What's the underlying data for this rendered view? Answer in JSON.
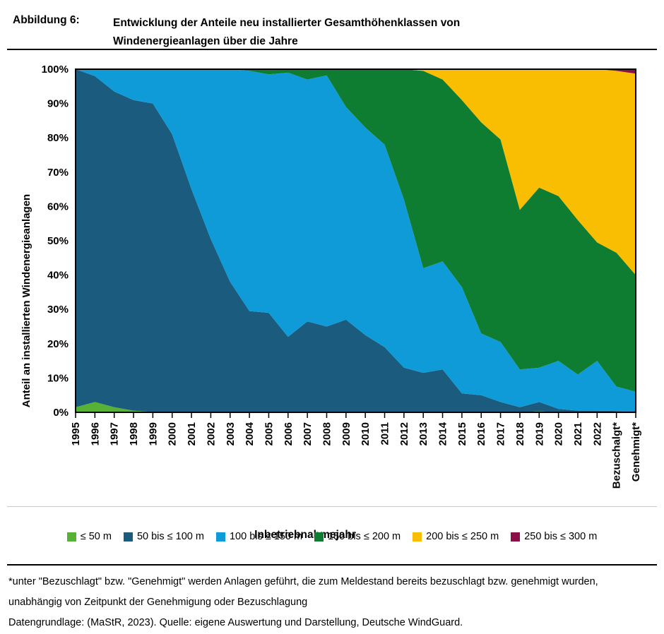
{
  "header": {
    "figure_label": "Abbildung 6:",
    "title": "Entwicklung der Anteile neu installierter Gesamthöhenklassen von Windenergieanlagen über die Jahre"
  },
  "chart_data": {
    "type": "area",
    "stacked": true,
    "unit": "percent",
    "title": "",
    "xlabel": "Inbetriebnahmejahr",
    "ylabel": "Anteil an installierten Windenergieanlagen",
    "ylim": [
      0,
      100
    ],
    "grid": false,
    "legend_position": "bottom",
    "y_ticks": [
      "0%",
      "10%",
      "20%",
      "30%",
      "40%",
      "50%",
      "60%",
      "70%",
      "80%",
      "90%",
      "100%"
    ],
    "categories": [
      "1995",
      "1996",
      "1997",
      "1998",
      "1999",
      "2000",
      "2001",
      "2002",
      "2003",
      "2004",
      "2005",
      "2006",
      "2007",
      "2008",
      "2009",
      "2010",
      "2011",
      "2012",
      "2013",
      "2014",
      "2015",
      "2016",
      "2017",
      "2018",
      "2019",
      "2020",
      "2021",
      "2022",
      "Bezuschalgt*",
      "Genehmigt*"
    ],
    "series": [
      {
        "name": "≤ 50 m",
        "color": "#55b234",
        "values": [
          1.5,
          3,
          1.5,
          0.5,
          0.1,
          0,
          0,
          0,
          0,
          0,
          0,
          0,
          0,
          0,
          0,
          0,
          0,
          0,
          0,
          0,
          0,
          0,
          0,
          0,
          0.3,
          0,
          0,
          0,
          0,
          0
        ]
      },
      {
        "name": "50 bis ≤ 100 m",
        "color": "#1a5b7e",
        "values": [
          98.5,
          95,
          92,
          90.5,
          89.9,
          81,
          65,
          50.5,
          38,
          29.5,
          29,
          22,
          26.5,
          25,
          27,
          22.5,
          19,
          13,
          11.5,
          12.5,
          5.5,
          5,
          3,
          1.5,
          2.7,
          1,
          0.5,
          0.5,
          0.4,
          0.3
        ]
      },
      {
        "name": "100 bis ≤ 150 m",
        "color": "#0f9bd7",
        "values": [
          0,
          2,
          6.5,
          9,
          10,
          19,
          35,
          49.5,
          62,
          70,
          69.5,
          77,
          70.5,
          73.2,
          62,
          60.5,
          59,
          49,
          30.5,
          31.5,
          31,
          18,
          17.5,
          11,
          10,
          14,
          10.5,
          14.5,
          7.1,
          5.7
        ]
      },
      {
        "name": "150 bis ≤ 200 m",
        "color": "#0e7c31",
        "values": [
          0,
          0,
          0,
          0,
          0,
          0,
          0,
          0,
          0,
          0.5,
          1.5,
          1,
          3,
          1.8,
          11,
          17,
          22,
          38,
          57.5,
          53,
          54.5,
          61.5,
          59,
          46.5,
          52.5,
          48,
          45,
          34.5,
          39,
          34
        ]
      },
      {
        "name": "200 bis ≤ 250 m",
        "color": "#f9bd01",
        "values": [
          0,
          0,
          0,
          0,
          0,
          0,
          0,
          0,
          0,
          0,
          0,
          0,
          0,
          0,
          0,
          0,
          0,
          0,
          0.5,
          3,
          9,
          15.5,
          20.5,
          41,
          34.5,
          37,
          44,
          50.5,
          53,
          58.7
        ]
      },
      {
        "name": "250 bis ≤ 300 m",
        "color": "#8c1048",
        "values": [
          0,
          0,
          0,
          0,
          0,
          0,
          0,
          0,
          0,
          0,
          0,
          0,
          0,
          0,
          0,
          0,
          0,
          0,
          0,
          0,
          0,
          0,
          0,
          0,
          0,
          0,
          0,
          0,
          0.5,
          1.3
        ]
      }
    ]
  },
  "footnotes": {
    "asterisk": "*unter \"Bezuschlagt\" bzw. \"Genehmigt\" werden Anlagen geführt, die zum Meldestand bereits bezuschlagt bzw. genehmigt wurden, unabhängig von Zeitpunkt der Genehmigung oder Bezuschlagung",
    "source": "Datengrundlage: (MaStR, 2023). Quelle: eigene Auswertung und Darstellung, Deutsche WindGuard."
  }
}
